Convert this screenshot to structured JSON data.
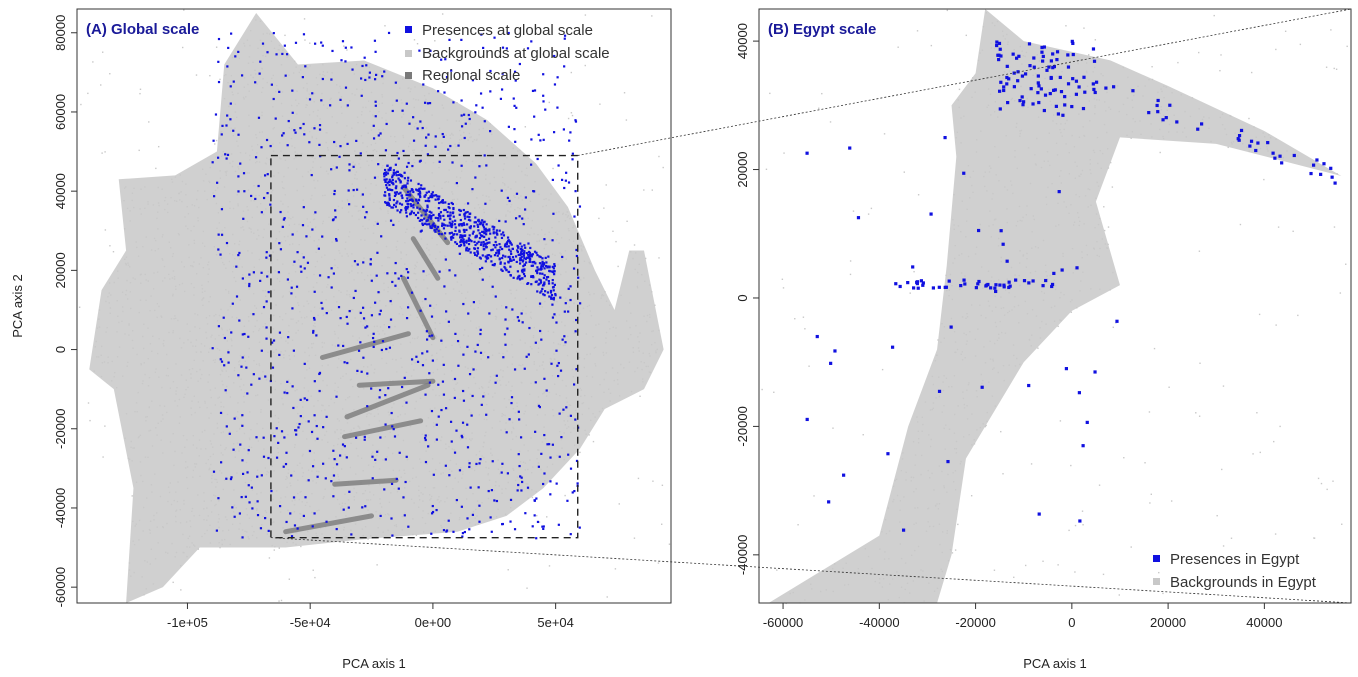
{
  "colors": {
    "presence": "#1010e0",
    "background": "#c8c8c8",
    "regional": "#7a7a7a",
    "title": "#1a1a99"
  },
  "chart_data": [
    {
      "type": "scatter",
      "title": "(A) Global scale",
      "xlabel": "PCA axis 1",
      "ylabel": "PCA axis 2",
      "xlim": [
        -145000,
        97000
      ],
      "ylim": [
        -64000,
        86000
      ],
      "xticks": [
        -100000,
        -50000,
        0,
        50000
      ],
      "xtick_labels": [
        "-1e+05",
        "-5e+04",
        "0e+00",
        "5e+04"
      ],
      "yticks": [
        -60000,
        -40000,
        -20000,
        0,
        20000,
        40000,
        60000,
        80000
      ],
      "ytick_labels": [
        "-60000",
        "-40000",
        "-20000",
        "0",
        "20000",
        "40000",
        "60000",
        "80000"
      ],
      "legend": {
        "position": "top-right",
        "entries": [
          "Presences at global scale",
          "Backgrounds at global scale",
          "Regional scale"
        ]
      },
      "zoom_box": {
        "x": [
          -66000,
          59000
        ],
        "y": [
          -47500,
          49000
        ]
      },
      "series": [
        {
          "name": "Backgrounds at global scale",
          "role": "background",
          "polygon": [
            [
              -128000,
              43000
            ],
            [
              -105000,
              44000
            ],
            [
              -88000,
              50000
            ],
            [
              -85000,
              72000
            ],
            [
              -72000,
              85000
            ],
            [
              -55000,
              72000
            ],
            [
              -28000,
              73000
            ],
            [
              0,
              66000
            ],
            [
              22000,
              58000
            ],
            [
              42000,
              47000
            ],
            [
              55000,
              36000
            ],
            [
              66000,
              20000
            ],
            [
              74000,
              10000
            ],
            [
              80000,
              25000
            ],
            [
              86000,
              25000
            ],
            [
              94000,
              0
            ],
            [
              86000,
              -10000
            ],
            [
              70000,
              -15000
            ],
            [
              60000,
              -25000
            ],
            [
              45000,
              -35000
            ],
            [
              30000,
              -42000
            ],
            [
              10000,
              -46000
            ],
            [
              -30000,
              -48000
            ],
            [
              -60000,
              -50000
            ],
            [
              -95000,
              -50000
            ],
            [
              -110000,
              -60000
            ],
            [
              -125000,
              -64000
            ],
            [
              -122000,
              -35000
            ],
            [
              -130000,
              -10000
            ],
            [
              -140000,
              -5000
            ],
            [
              -135000,
              15000
            ],
            [
              -125000,
              25000
            ]
          ]
        },
        {
          "name": "Regional scale",
          "role": "regional",
          "segments": [
            [
              [
                -12000,
                41000
              ],
              [
                6000,
                27000
              ]
            ],
            [
              [
                -8000,
                28000
              ],
              [
                2000,
                18000
              ]
            ],
            [
              [
                -12000,
                18000
              ],
              [
                0,
                3000
              ]
            ],
            [
              [
                -35000,
                -17000
              ],
              [
                -2000,
                -9000
              ]
            ],
            [
              [
                -36000,
                -22000
              ],
              [
                -5000,
                -18000
              ]
            ],
            [
              [
                -40000,
                -34000
              ],
              [
                -15000,
                -33000
              ]
            ],
            [
              [
                -60000,
                -46000
              ],
              [
                -25000,
                -42000
              ]
            ],
            [
              [
                -45000,
                -2000
              ],
              [
                -10000,
                4000
              ]
            ],
            [
              [
                -30000,
                -9000
              ],
              [
                0,
                -8000
              ]
            ]
          ]
        },
        {
          "name": "Presences at global scale",
          "role": "presence",
          "clusters": [
            {
              "x": [
                -20000,
                50000
              ],
              "y_center": [
                42000,
                17000
              ],
              "spread": 5000,
              "count": 700
            },
            {
              "x": [
                -90000,
                60000
              ],
              "y": [
                -48000,
                80000
              ],
              "count": 900
            }
          ]
        }
      ]
    },
    {
      "type": "scatter",
      "title": "(B) Egypt scale",
      "xlabel": "PCA axis 1",
      "ylabel": "",
      "xlim": [
        -65000,
        58000
      ],
      "ylim": [
        -47500,
        45000
      ],
      "xticks": [
        -60000,
        -40000,
        -20000,
        0,
        20000,
        40000
      ],
      "xtick_labels": [
        "-60000",
        "-40000",
        "-20000",
        "0",
        "20000",
        "40000"
      ],
      "yticks": [
        -40000,
        -20000,
        0,
        20000,
        40000
      ],
      "ytick_labels": [
        "-40000",
        "-20000",
        "0",
        "20000",
        "40000"
      ],
      "legend": {
        "position": "bottom-right",
        "entries": [
          "Presences in Egypt",
          "Backgrounds in Egypt"
        ]
      },
      "series": [
        {
          "name": "Backgrounds in Egypt",
          "role": "background",
          "polygon": [
            [
              -63000,
              -47500
            ],
            [
              -40000,
              -37000
            ],
            [
              -34000,
              -20000
            ],
            [
              -28000,
              -8000
            ],
            [
              -26000,
              5000
            ],
            [
              -24000,
              22000
            ],
            [
              -25000,
              30000
            ],
            [
              -20000,
              35000
            ],
            [
              -18000,
              45000
            ],
            [
              -10000,
              40000
            ],
            [
              8000,
              37000
            ],
            [
              20000,
              33000
            ],
            [
              40000,
              26000
            ],
            [
              56000,
              19000
            ],
            [
              30000,
              24000
            ],
            [
              10000,
              25000
            ],
            [
              5000,
              15000
            ],
            [
              10000,
              2000
            ],
            [
              0,
              -2000
            ],
            [
              -10000,
              -10000
            ],
            [
              -22000,
              -25000
            ],
            [
              -25000,
              -40000
            ],
            [
              -28000,
              -47500
            ]
          ]
        },
        {
          "name": "Presences in Egypt",
          "role": "presence",
          "clusters": [
            {
              "x": [
                -16000,
                6000
              ],
              "y": [
                28000,
                40000
              ],
              "count": 90
            },
            {
              "x": [
                5000,
                56000
              ],
              "y_center": [
                33000,
                19000
              ],
              "spread": 1500,
              "count": 35
            },
            {
              "x": [
                -37000,
                -4000
              ],
              "y": [
                1500,
                2800
              ],
              "count": 40
            },
            {
              "x": [
                -60000,
                10000
              ],
              "y": [
                -40000,
                25000
              ],
              "count": 40
            }
          ]
        }
      ]
    }
  ]
}
